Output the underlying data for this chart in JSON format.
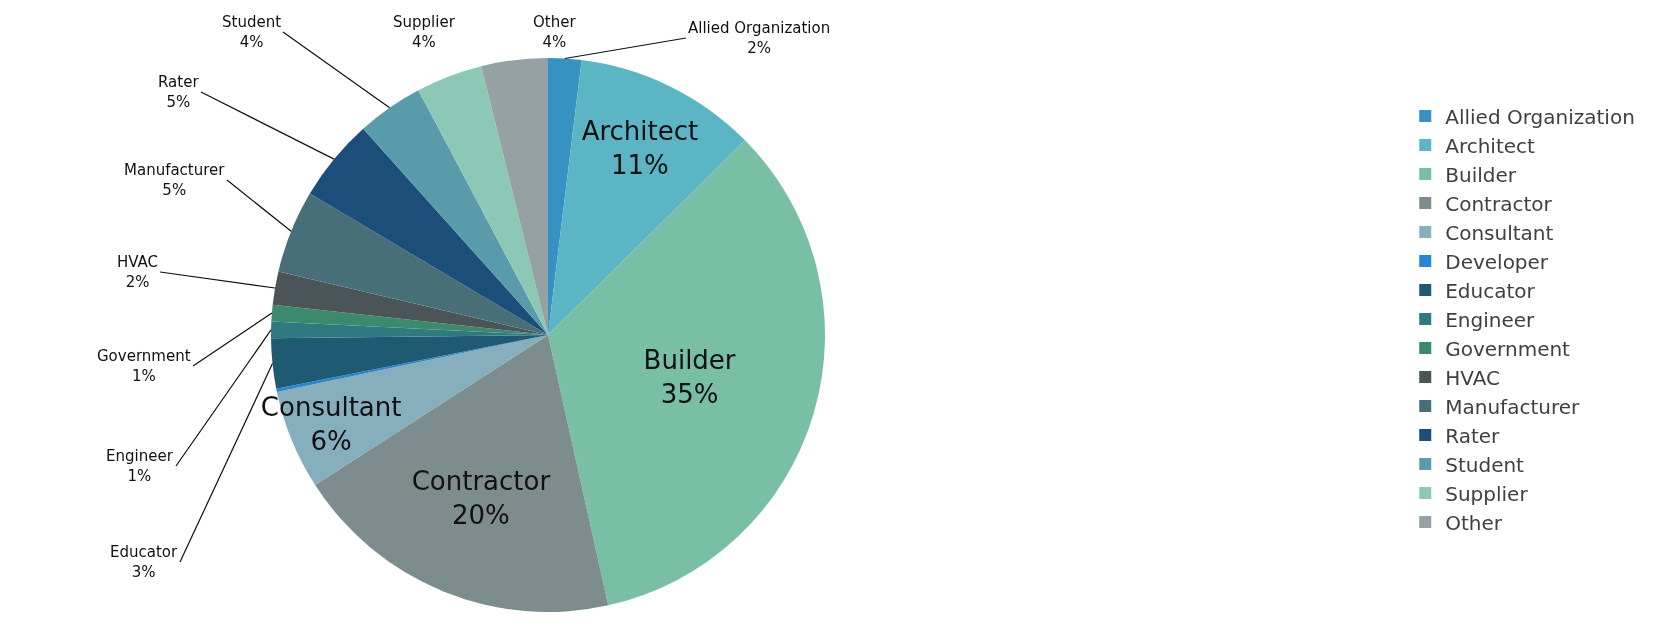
{
  "chart_data": {
    "type": "pie",
    "categories": [
      "Allied Organization",
      "Architect",
      "Builder",
      "Contractor",
      "Consultant",
      "Developer",
      "Educator",
      "Engineer",
      "Government",
      "HVAC",
      "Manufacturer",
      "Rater",
      "Student",
      "Supplier",
      "Other"
    ],
    "values": [
      2,
      11,
      35,
      20,
      6,
      0.2,
      3,
      1,
      1,
      2,
      5,
      5,
      4,
      4,
      4
    ],
    "colors": [
      "#3592c2",
      "#5bb5c4",
      "#78bfa6",
      "#7d8c8d",
      "#86aebd",
      "#2b86d1",
      "#1f5a72",
      "#2f7a80",
      "#3b8a6d",
      "#4b5557",
      "#486e78",
      "#1b4e78",
      "#5a9bab",
      "#8cc8b6",
      "#95a1a3"
    ],
    "value_labels": [
      "2%",
      "11%",
      "35%",
      "20%",
      "6%",
      null,
      "3%",
      "1%",
      "1%",
      "2%",
      "5%",
      "5%",
      "4%",
      "4%",
      "4%"
    ],
    "legend": "right"
  }
}
